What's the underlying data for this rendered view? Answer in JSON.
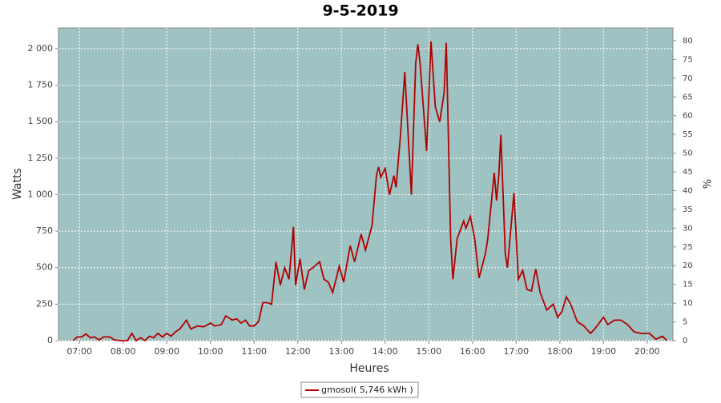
{
  "chart_data": {
    "type": "line",
    "title": "9-5-2019",
    "x_label": "Heures",
    "y_label": "Watts",
    "y2_label": "%",
    "x": [
      6.85,
      6.95,
      7.05,
      7.15,
      7.25,
      7.35,
      7.45,
      7.55,
      7.7,
      7.8,
      7.95,
      8.1,
      8.2,
      8.3,
      8.4,
      8.5,
      8.6,
      8.7,
      8.8,
      8.9,
      9.0,
      9.1,
      9.2,
      9.3,
      9.45,
      9.55,
      9.7,
      9.85,
      10.0,
      10.1,
      10.25,
      10.35,
      10.5,
      10.6,
      10.7,
      10.8,
      10.9,
      11.0,
      11.1,
      11.2,
      11.3,
      11.4,
      11.5,
      11.6,
      11.7,
      11.8,
      11.9,
      11.95,
      12.05,
      12.15,
      12.25,
      12.35,
      12.5,
      12.6,
      12.7,
      12.8,
      12.95,
      13.05,
      13.2,
      13.3,
      13.45,
      13.55,
      13.7,
      13.8,
      13.85,
      13.9,
      14.0,
      14.1,
      14.2,
      14.25,
      14.35,
      14.45,
      14.6,
      14.7,
      14.75,
      14.8,
      14.95,
      15.05,
      15.15,
      15.25,
      15.35,
      15.4,
      15.5,
      15.55,
      15.65,
      15.8,
      15.85,
      15.95,
      16.05,
      16.15,
      16.3,
      16.35,
      16.5,
      16.55,
      16.6,
      16.65,
      16.75,
      16.8,
      16.95,
      17.05,
      17.15,
      17.25,
      17.35,
      17.45,
      17.55,
      17.7,
      17.85,
      17.95,
      18.05,
      18.15,
      18.25,
      18.4,
      18.55,
      18.7,
      18.8,
      19.0,
      19.1,
      19.25,
      19.4,
      19.55,
      19.7,
      19.85,
      20.05,
      20.2,
      20.35,
      20.45
    ],
    "series": [
      {
        "name": "gmosol( 5,746 kWh )",
        "color": "#b00000",
        "values": [
          0,
          25,
          25,
          45,
          20,
          25,
          5,
          25,
          25,
          5,
          0,
          0,
          50,
          0,
          20,
          0,
          30,
          20,
          50,
          25,
          50,
          30,
          60,
          80,
          140,
          80,
          100,
          95,
          120,
          100,
          110,
          170,
          140,
          150,
          120,
          140,
          100,
          100,
          130,
          260,
          260,
          250,
          540,
          380,
          500,
          420,
          780,
          380,
          560,
          350,
          480,
          500,
          540,
          420,
          400,
          330,
          510,
          400,
          650,
          540,
          730,
          620,
          790,
          1130,
          1190,
          1120,
          1180,
          1000,
          1130,
          1050,
          1400,
          1840,
          1000,
          1900,
          2030,
          1900,
          1300,
          2050,
          1600,
          1500,
          1700,
          2040,
          700,
          420,
          700,
          820,
          770,
          850,
          700,
          430,
          600,
          700,
          1150,
          960,
          1120,
          1410,
          600,
          500,
          1010,
          420,
          480,
          350,
          340,
          490,
          330,
          210,
          250,
          160,
          200,
          300,
          250,
          130,
          100,
          50,
          80,
          160,
          110,
          140,
          140,
          110,
          60,
          50,
          50,
          10,
          30,
          0
        ]
      }
    ],
    "xlim": [
      6.52,
      20.59
    ],
    "xticks": [
      {
        "value": 7,
        "label": "07:00"
      },
      {
        "value": 8,
        "label": "08:00"
      },
      {
        "value": 9,
        "label": "09:00"
      },
      {
        "value": 10,
        "label": "10:00"
      },
      {
        "value": 11,
        "label": "11:00"
      },
      {
        "value": 12,
        "label": "12:00"
      },
      {
        "value": 13,
        "label": "13:00"
      },
      {
        "value": 14,
        "label": "14:00"
      },
      {
        "value": 15,
        "label": "15:00"
      },
      {
        "value": 16,
        "label": "16:00"
      },
      {
        "value": 17,
        "label": "17:00"
      },
      {
        "value": 18,
        "label": "18:00"
      },
      {
        "value": 19,
        "label": "19:00"
      },
      {
        "value": 20,
        "label": "20:00"
      }
    ],
    "ylim": [
      0,
      2142
    ],
    "yticks": [
      0,
      250,
      500,
      750,
      {
        "value": 1000,
        "label": "1 000"
      },
      {
        "value": 1250,
        "label": "1 250"
      },
      {
        "value": 1500,
        "label": "1 500"
      },
      {
        "value": 1750,
        "label": "1 750"
      },
      {
        "value": 2000,
        "label": "2 000"
      }
    ],
    "y2lim": [
      0,
      83.4
    ],
    "y2ticks": [
      0,
      5,
      10,
      15,
      20,
      25,
      30,
      35,
      40,
      45,
      50,
      55,
      60,
      65,
      70,
      75,
      80
    ],
    "grid": true,
    "background": "#9fc2c2",
    "legend": "bottom"
  }
}
